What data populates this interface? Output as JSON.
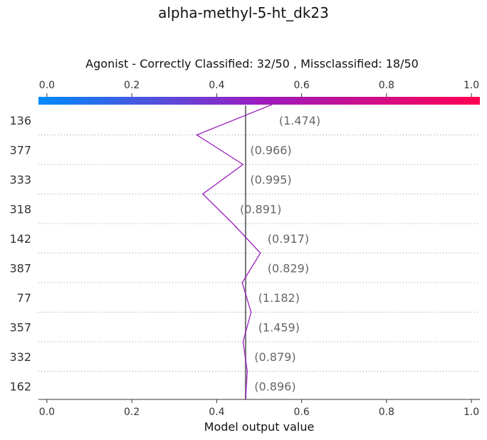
{
  "title": "alpha-methyl-5-ht_dk23",
  "subtitle": "Agonist - Correctly Classified: 32/50 , Missclassified: 18/50",
  "chart_data": {
    "type": "decision_plot",
    "title": "alpha-methyl-5-ht_dk23",
    "subtitle": "Agonist - Correctly Classified: 32/50 , Missclassified: 18/50",
    "xlabel": "Model output value",
    "xlim": [
      -0.02,
      1.02
    ],
    "xticks": [
      0.0,
      0.2,
      0.4,
      0.6,
      0.8,
      1.0
    ],
    "xtick_labels": [
      "0.0",
      "0.2",
      "0.4",
      "0.6",
      "0.8",
      "1.0"
    ],
    "base_value": 0.468,
    "colorbar": {
      "position": "top",
      "range": [
        0.0,
        1.0
      ],
      "low_color": "#008bfb",
      "high_color": "#ff0052"
    },
    "line_color": "#9d1fbf",
    "features": [
      {
        "name": "136",
        "value_label": "(1.474)",
        "cum_value": 0.53
      },
      {
        "name": "377",
        "value_label": "(0.966)",
        "cum_value": 0.353
      },
      {
        "name": "333",
        "value_label": "(0.995)",
        "cum_value": 0.462
      },
      {
        "name": "318",
        "value_label": "(0.891)",
        "cum_value": 0.367
      },
      {
        "name": "142",
        "value_label": "(0.917)",
        "cum_value": 0.438
      },
      {
        "name": "387",
        "value_label": "(0.829)",
        "cum_value": 0.503
      },
      {
        "name": "77",
        "value_label": "(1.182)",
        "cum_value": 0.46
      },
      {
        "name": "357",
        "value_label": "(1.459)",
        "cum_value": 0.481
      },
      {
        "name": "332",
        "value_label": "(0.879)",
        "cum_value": 0.462
      },
      {
        "name": "162",
        "value_label": "(0.896)",
        "cum_value": 0.472
      }
    ],
    "start_value": 0.468,
    "grid": "dotted-horizontal"
  }
}
